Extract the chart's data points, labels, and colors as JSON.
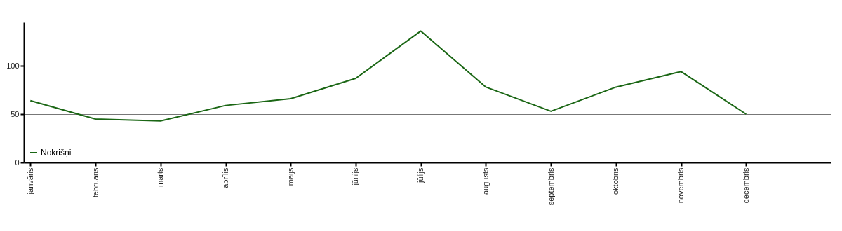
{
  "chart_data": {
    "type": "line",
    "categories": [
      "janvāris",
      "februāris",
      "marts",
      "aprīlis",
      "maijs",
      "jūnijs",
      "jūlijs",
      "augusts",
      "septembris",
      "oktobris",
      "novembris",
      "decembris"
    ],
    "series": [
      {
        "name": "Nokrišņi",
        "color": "#1a6614",
        "values": [
          64,
          45,
          43,
          59,
          66,
          87,
          136,
          78,
          53,
          78,
          94,
          50
        ]
      }
    ],
    "ylim": [
      0,
      145
    ],
    "yticks": [
      0,
      50,
      100
    ],
    "grid": "y",
    "legend": "bottom left",
    "marker": "none",
    "line_style": "solid"
  }
}
